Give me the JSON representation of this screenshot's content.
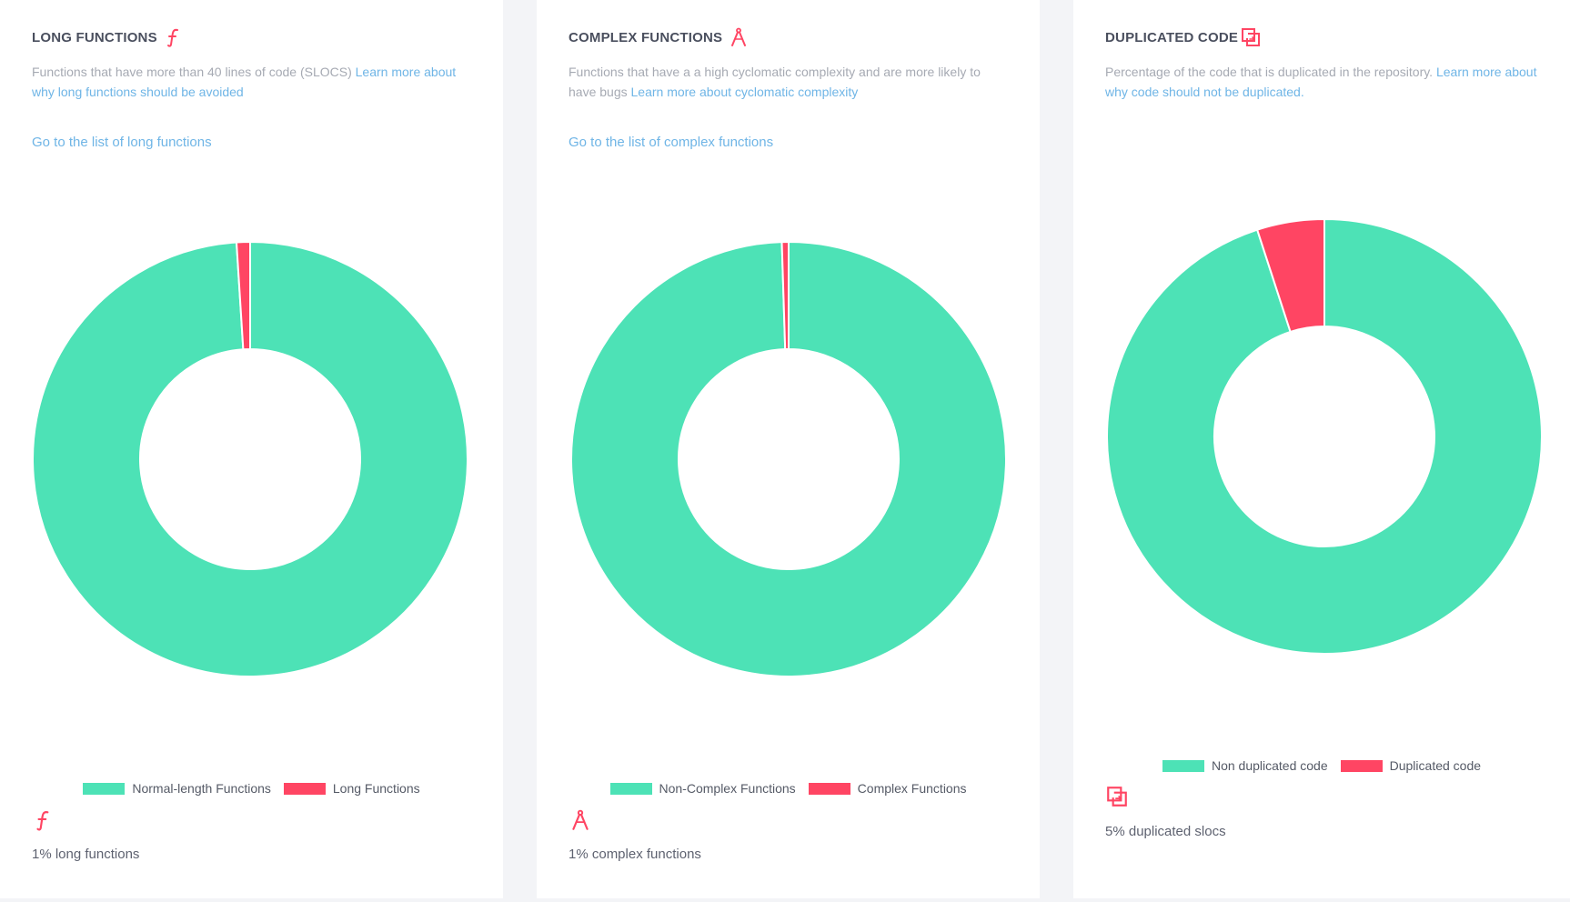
{
  "colors": {
    "normal": "#4de2b6",
    "flagged": "#ff4563",
    "link": "#6fb5e6"
  },
  "cards": [
    {
      "title": "LONG FUNCTIONS",
      "icon": "function-icon",
      "description": "Functions that have more than 40 lines of code (SLOCS)",
      "learn_more": "Learn more about why long functions should be avoided",
      "list_link": "Go to the list of long functions",
      "summary": "1% long functions"
    },
    {
      "title": "COMPLEX FUNCTIONS",
      "icon": "compass-icon",
      "description": "Functions that have a a high cyclomatic complexity and are more likely to have bugs",
      "learn_more": "Learn more about cyclomatic complexity",
      "list_link": "Go to the list of complex functions",
      "summary": "1% complex functions"
    },
    {
      "title": "DUPLICATED CODE",
      "icon": "duplicate-icon",
      "description": "Percentage of the code that is duplicated in the repository.",
      "learn_more": "Learn more about why code should not be duplicated.",
      "list_link": "",
      "summary": "5% duplicated slocs"
    }
  ],
  "chart_data": [
    {
      "type": "pie",
      "donut": true,
      "labels": [
        "Normal-length Functions",
        "Long Functions"
      ],
      "values": [
        99,
        1
      ],
      "colors": [
        "#4de2b6",
        "#ff4563"
      ],
      "legend": "bottom"
    },
    {
      "type": "pie",
      "donut": true,
      "labels": [
        "Non-Complex Functions",
        "Complex Functions"
      ],
      "values": [
        99.5,
        0.5
      ],
      "colors": [
        "#4de2b6",
        "#ff4563"
      ],
      "legend": "bottom"
    },
    {
      "type": "pie",
      "donut": true,
      "labels": [
        "Non duplicated code",
        "Duplicated code"
      ],
      "values": [
        95,
        5
      ],
      "colors": [
        "#4de2b6",
        "#ff4563"
      ],
      "legend": "bottom"
    }
  ]
}
